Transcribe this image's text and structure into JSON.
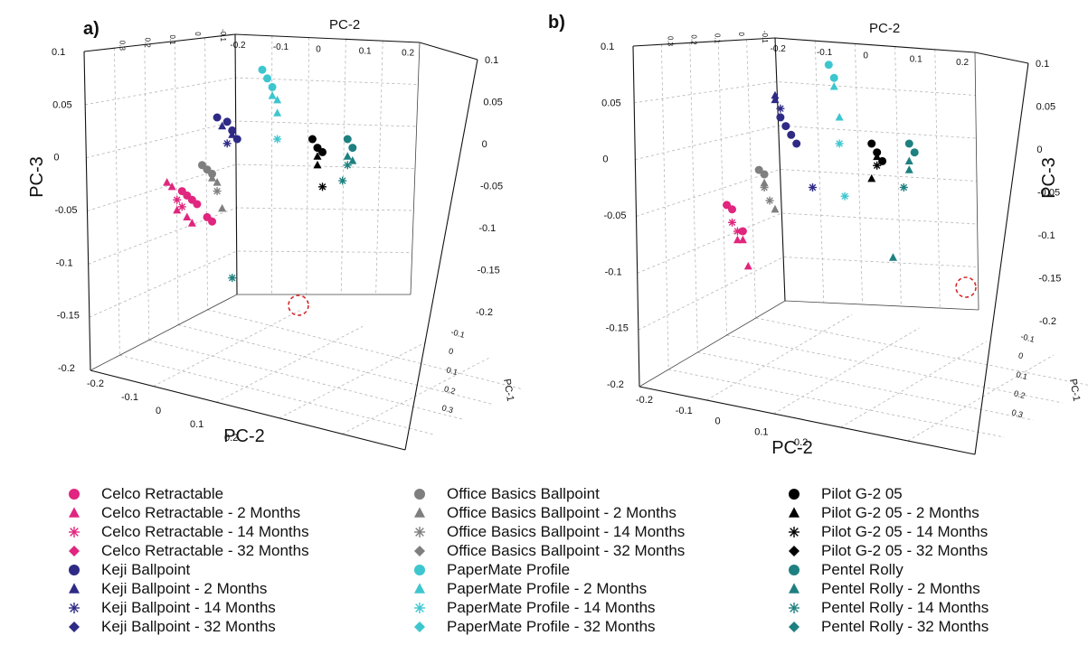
{
  "chart_data": [
    {
      "type": "scatter",
      "panel_label": "a)",
      "x_axis_label": "PC-2",
      "top_axis_label": "PC-2",
      "z_axis_label": "PC-3",
      "depth_axis_label": "PC-1",
      "z_ticks": [
        "0.1",
        "0.05",
        "0",
        "-0.05",
        "-0.1",
        "-0.15",
        "-0.2"
      ],
      "z_ticks_right": [
        "0.1",
        "0.05",
        "0",
        "-0.05",
        "-0.1",
        "-0.15",
        "-0.2"
      ],
      "x_ticks": [
        "-0.2",
        "-0.1",
        "0",
        "0.1",
        "0.2"
      ],
      "top_x_ticks": [
        "-0.2",
        "-0.1",
        "0",
        "0.1",
        "0.2"
      ],
      "top_pc1_ticks": [
        "0.3",
        "0.2",
        "0.1",
        "0",
        "-0.1"
      ],
      "depth_ticks": [
        "-0.1",
        "0",
        "0.1",
        "0.2",
        "0.3"
      ],
      "highlight": "circled outlier point (Pentel Rolly - 14 Months)",
      "series": [
        {
          "name": "Celco Retractable",
          "x": [
            -0.16,
            -0.15,
            -0.14,
            -0.13,
            -0.11,
            -0.1
          ],
          "y": [
            -0.06,
            -0.065,
            -0.07,
            -0.075,
            -0.09,
            -0.095
          ]
        },
        {
          "name": "Celco Retractable - 2 Months",
          "x": [
            -0.19,
            -0.18
          ],
          "y": [
            -0.05,
            -0.055
          ]
        },
        {
          "name": "Celco Retractable - 14 Months",
          "x": [
            -0.17,
            -0.16
          ],
          "y": [
            -0.07,
            -0.078
          ]
        },
        {
          "name": "Celco Retractable - 32 Months",
          "x": [
            -0.17,
            -0.15,
            -0.14
          ],
          "y": [
            -0.082,
            -0.09,
            -0.097
          ]
        },
        {
          "name": "Keji Ballpoint",
          "x": [
            -0.09,
            -0.07,
            -0.06,
            -0.05
          ],
          "y": [
            0.025,
            0.02,
            0.01,
            0.0
          ]
        },
        {
          "name": "Keji Ballpoint - 2 Months",
          "x": [
            -0.08
          ],
          "y": [
            0.015
          ]
        },
        {
          "name": "Keji Ballpoint - 14 Months",
          "x": [
            -0.07
          ],
          "y": [
            -0.005
          ]
        },
        {
          "name": "Keji Ballpoint - 32 Months",
          "x": [
            -0.06
          ],
          "y": [
            0.005
          ]
        },
        {
          "name": "Office Basics Ballpoint",
          "x": [
            -0.12,
            -0.11,
            -0.1
          ],
          "y": [
            -0.03,
            -0.035,
            -0.04
          ]
        },
        {
          "name": "Office Basics Ballpoint - 2 Months",
          "x": [
            -0.1,
            -0.09
          ],
          "y": [
            -0.045,
            -0.05
          ]
        },
        {
          "name": "Office Basics Ballpoint - 14 Months",
          "x": [
            -0.09
          ],
          "y": [
            -0.06
          ]
        },
        {
          "name": "Office Basics Ballpoint - 32 Months",
          "x": [
            -0.08
          ],
          "y": [
            -0.08
          ]
        },
        {
          "name": "PaperMate Profile",
          "x": [
            0.0,
            0.01,
            0.02
          ],
          "y": [
            0.08,
            0.07,
            0.06
          ]
        },
        {
          "name": "PaperMate Profile - 2 Months",
          "x": [
            0.02,
            0.03
          ],
          "y": [
            0.05,
            0.045
          ]
        },
        {
          "name": "PaperMate Profile - 14 Months",
          "x": [
            0.03
          ],
          "y": [
            0.0
          ]
        },
        {
          "name": "PaperMate Profile - 32 Months",
          "x": [
            0.03
          ],
          "y": [
            0.03
          ]
        },
        {
          "name": "Pilot G-2 05",
          "x": [
            0.1,
            0.11,
            0.12
          ],
          "y": [
            0.0,
            -0.01,
            -0.015
          ]
        },
        {
          "name": "Pilot G-2 05 - 2 Months",
          "x": [
            0.11
          ],
          "y": [
            -0.02
          ]
        },
        {
          "name": "Pilot G-2 05 - 14 Months",
          "x": [
            0.12
          ],
          "y": [
            -0.055
          ]
        },
        {
          "name": "Pilot G-2 05 - 32 Months",
          "x": [
            0.11
          ],
          "y": [
            -0.03
          ]
        },
        {
          "name": "Pentel Rolly",
          "x": [
            0.17,
            0.18
          ],
          "y": [
            0.0,
            -0.01
          ]
        },
        {
          "name": "Pentel Rolly - 2 Months",
          "x": [
            0.17
          ],
          "y": [
            -0.02
          ]
        },
        {
          "name": "Pentel Rolly - 14 Months",
          "x": [
            0.16,
            0.17,
            -0.06
          ],
          "y": [
            -0.048,
            -0.03,
            -0.16
          ]
        },
        {
          "name": "Pentel Rolly - 32 Months",
          "x": [
            0.18
          ],
          "y": [
            -0.025
          ]
        }
      ]
    },
    {
      "type": "scatter",
      "panel_label": "b)",
      "x_axis_label": "PC-2",
      "top_axis_label": "PC-2",
      "z_axis_label": "PC-3",
      "depth_axis_label": "PC-1",
      "z_ticks": [
        "0.1",
        "0.05",
        "0",
        "-0.05",
        "-0.1",
        "-0.15",
        "-0.2"
      ],
      "z_ticks_right": [
        "0.1",
        "0.05",
        "0",
        "-0.05",
        "-0.1",
        "-0.15",
        "-0.2"
      ],
      "x_ticks": [
        "-0.2",
        "-0.1",
        "0",
        "0.1",
        "0.2"
      ],
      "top_x_ticks": [
        "-0.2",
        "-0.1",
        "0",
        "0.1",
        "0.2"
      ],
      "top_pc1_ticks": [
        "0.3",
        "0.2",
        "0.1",
        "0",
        "-0.1"
      ],
      "depth_ticks": [
        "-0.1",
        "0",
        "0.1",
        "0.2",
        "0.3"
      ],
      "highlight": "circled outlier point (Pentel Rolly - 32 Months)",
      "series": [
        {
          "name": "Celco Retractable",
          "x": [
            -0.16,
            -0.15,
            -0.13
          ],
          "y": [
            -0.07,
            -0.075,
            -0.1
          ]
        },
        {
          "name": "Celco Retractable - 2 Months",
          "x": [
            -0.14
          ],
          "y": [
            -0.11
          ]
        },
        {
          "name": "Celco Retractable - 14 Months",
          "x": [
            -0.15,
            -0.14
          ],
          "y": [
            -0.09,
            -0.1
          ]
        },
        {
          "name": "Celco Retractable - 32 Months",
          "x": [
            -0.13,
            -0.12
          ],
          "y": [
            -0.11,
            -0.14
          ]
        },
        {
          "name": "Keji Ballpoint",
          "x": [
            -0.06,
            -0.05,
            -0.04,
            -0.03
          ],
          "y": [
            0.03,
            0.02,
            0.01,
            0.0
          ]
        },
        {
          "name": "Keji Ballpoint - 2 Months",
          "x": [
            -0.07
          ],
          "y": [
            0.05
          ]
        },
        {
          "name": "Keji Ballpoint - 14 Months",
          "x": [
            -0.06,
            0.0
          ],
          "y": [
            0.04,
            -0.05
          ]
        },
        {
          "name": "Keji Ballpoint - 32 Months",
          "x": [
            -0.07
          ],
          "y": [
            0.055
          ]
        },
        {
          "name": "Office Basics Ballpoint",
          "x": [
            -0.1,
            -0.09
          ],
          "y": [
            -0.03,
            -0.035
          ]
        },
        {
          "name": "Office Basics Ballpoint - 2 Months",
          "x": [
            -0.09
          ],
          "y": [
            -0.045
          ]
        },
        {
          "name": "Office Basics Ballpoint - 14 Months",
          "x": [
            -0.09,
            -0.08
          ],
          "y": [
            -0.05,
            -0.065
          ]
        },
        {
          "name": "Office Basics Ballpoint - 32 Months",
          "x": [
            -0.07
          ],
          "y": [
            -0.075
          ]
        },
        {
          "name": "PaperMate Profile",
          "x": [
            0.03,
            0.04
          ],
          "y": [
            0.09,
            0.075
          ]
        },
        {
          "name": "PaperMate Profile - 2 Months",
          "x": [
            0.04
          ],
          "y": [
            0.065
          ]
        },
        {
          "name": "PaperMate Profile - 14 Months",
          "x": [
            0.05,
            0.06
          ],
          "y": [
            0.0,
            -0.06
          ]
        },
        {
          "name": "PaperMate Profile - 32 Months",
          "x": [
            0.05
          ],
          "y": [
            0.03
          ]
        },
        {
          "name": "Pilot G-2 05",
          "x": [
            0.11,
            0.12,
            0.13
          ],
          "y": [
            0.0,
            -0.01,
            -0.02
          ]
        },
        {
          "name": "Pilot G-2 05 - 2 Months",
          "x": [
            0.12
          ],
          "y": [
            -0.015
          ]
        },
        {
          "name": "Pilot G-2 05 - 14 Months",
          "x": [
            0.12
          ],
          "y": [
            -0.025
          ]
        },
        {
          "name": "Pilot G-2 05 - 32 Months",
          "x": [
            0.11
          ],
          "y": [
            -0.04
          ]
        },
        {
          "name": "Pentel Rolly",
          "x": [
            0.18,
            0.19
          ],
          "y": [
            0.0,
            -0.01
          ]
        },
        {
          "name": "Pentel Rolly - 2 Months",
          "x": [
            0.18
          ],
          "y": [
            -0.02
          ]
        },
        {
          "name": "Pentel Rolly - 14 Months",
          "x": [
            0.17
          ],
          "y": [
            -0.05
          ]
        },
        {
          "name": "Pentel Rolly - 32 Months",
          "x": [
            0.18,
            0.15
          ],
          "y": [
            -0.03,
            -0.13
          ]
        }
      ]
    }
  ],
  "colors": {
    "celco": "#e0267e",
    "keji": "#2e2a86",
    "office": "#7f7f7f",
    "papermate": "#3ec6cf",
    "pilot": "#000000",
    "pentel": "#1e8080",
    "highlight_circle": "#d62828",
    "grid": "#b5b5b5",
    "axis": "#111111"
  },
  "legend": {
    "columns": [
      [
        {
          "label": "Celco Retractable",
          "marker": "circle",
          "color_key": "celco"
        },
        {
          "label": "Celco Retractable - 2 Months",
          "marker": "triangle",
          "color_key": "celco"
        },
        {
          "label": "Celco Retractable - 14 Months",
          "marker": "asterisk",
          "color_key": "celco"
        },
        {
          "label": "Celco Retractable - 32 Months",
          "marker": "diamond",
          "color_key": "celco"
        },
        {
          "label": "Keji Ballpoint",
          "marker": "circle",
          "color_key": "keji"
        },
        {
          "label": "Keji Ballpoint - 2 Months",
          "marker": "triangle",
          "color_key": "keji"
        },
        {
          "label": "Keji Ballpoint - 14 Months",
          "marker": "asterisk",
          "color_key": "keji"
        },
        {
          "label": "Keji Ballpoint - 32 Months",
          "marker": "diamond",
          "color_key": "keji"
        }
      ],
      [
        {
          "label": "Office Basics Ballpoint",
          "marker": "circle",
          "color_key": "office"
        },
        {
          "label": "Office Basics Ballpoint - 2 Months",
          "marker": "triangle",
          "color_key": "office"
        },
        {
          "label": "Office Basics Ballpoint - 14 Months",
          "marker": "asterisk",
          "color_key": "office"
        },
        {
          "label": "Office Basics Ballpoint - 32 Months",
          "marker": "diamond",
          "color_key": "office"
        },
        {
          "label": "PaperMate Profile",
          "marker": "circle",
          "color_key": "papermate"
        },
        {
          "label": "PaperMate Profile - 2 Months",
          "marker": "triangle",
          "color_key": "papermate"
        },
        {
          "label": "PaperMate Profile - 14 Months",
          "marker": "asterisk",
          "color_key": "papermate"
        },
        {
          "label": "PaperMate Profile - 32 Months",
          "marker": "diamond",
          "color_key": "papermate"
        }
      ],
      [
        {
          "label": "Pilot G-2 05",
          "marker": "circle",
          "color_key": "pilot"
        },
        {
          "label": "Pilot G-2 05 - 2 Months",
          "marker": "triangle",
          "color_key": "pilot"
        },
        {
          "label": "Pilot G-2 05 - 14 Months",
          "marker": "asterisk",
          "color_key": "pilot"
        },
        {
          "label": "Pilot G-2 05 - 32 Months",
          "marker": "diamond",
          "color_key": "pilot"
        },
        {
          "label": "Pentel Rolly",
          "marker": "circle",
          "color_key": "pentel"
        },
        {
          "label": "Pentel Rolly - 2 Months",
          "marker": "triangle",
          "color_key": "pentel"
        },
        {
          "label": "Pentel Rolly - 14 Months",
          "marker": "asterisk",
          "color_key": "pentel"
        },
        {
          "label": "Pentel Rolly - 32 Months",
          "marker": "diamond",
          "color_key": "pentel"
        }
      ]
    ]
  }
}
